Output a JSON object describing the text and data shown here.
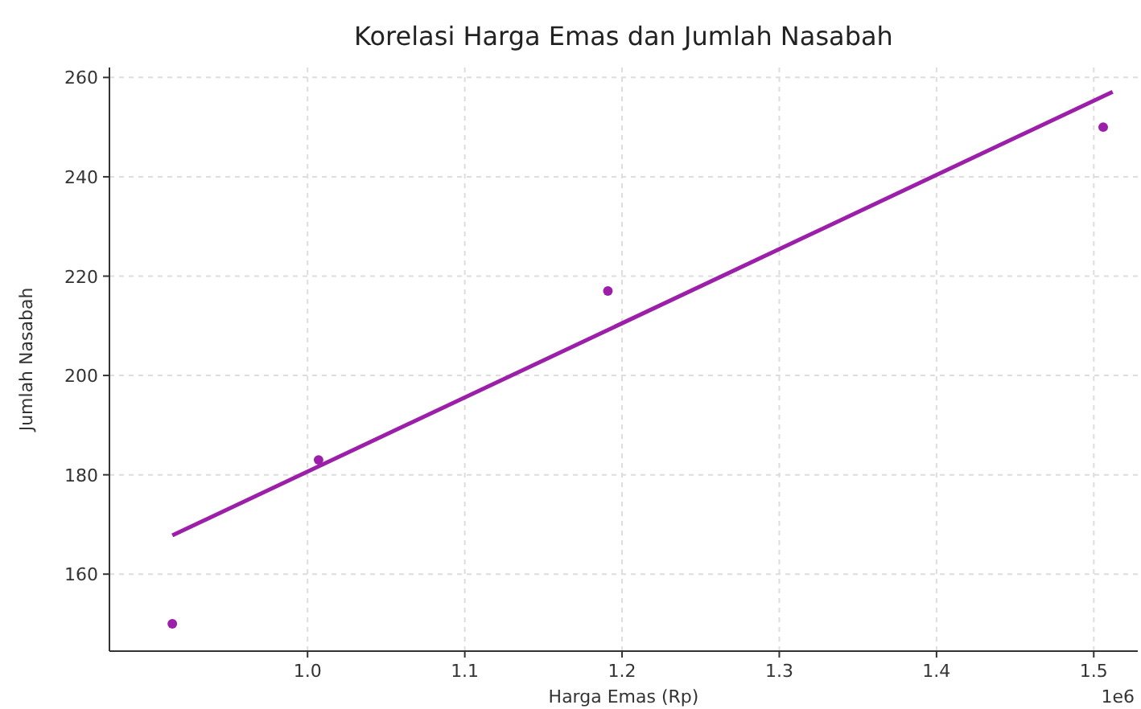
{
  "chart_data": {
    "type": "scatter",
    "title": "Korelasi Harga Emas dan Jumlah Nasabah",
    "xlabel": "Harga Emas (Rp)",
    "ylabel": "Jumlah Nasabah",
    "annotations": [
      "1e6"
    ],
    "xlim": [
      0.874,
      1.528
    ],
    "ylim": [
      144.5,
      262
    ],
    "xticks": [
      {
        "value": 1,
        "label": "1.0"
      },
      1.1,
      1.2,
      1.3,
      1.4,
      1.5
    ],
    "yticks": [
      160,
      180,
      200,
      220,
      240,
      260
    ],
    "grid": true,
    "series": [
      {
        "color": "#9b1fa8",
        "marker": "circle",
        "x": [
          0.914,
          1.007,
          1.191,
          1.506
        ],
        "values": [
          150,
          183,
          217,
          250
        ]
      },
      {
        "type": "line",
        "color": "#9b1fa8",
        "line_style": "solid",
        "x": [
          0.914,
          1.512
        ],
        "values": [
          167.8,
          257.1
        ]
      }
    ]
  }
}
